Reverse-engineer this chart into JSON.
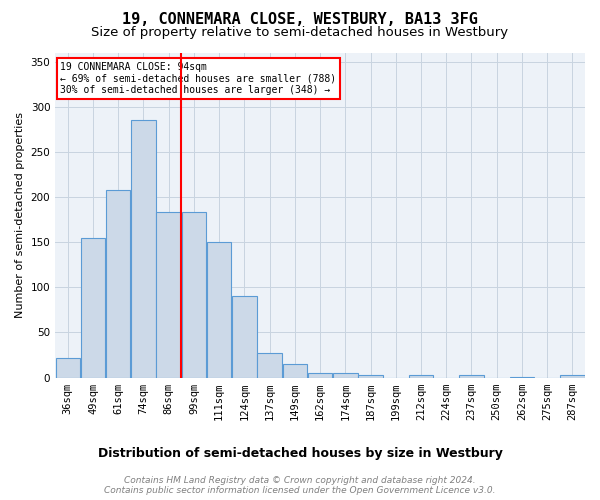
{
  "title": "19, CONNEMARA CLOSE, WESTBURY, BA13 3FG",
  "subtitle": "Size of property relative to semi-detached houses in Westbury",
  "xlabel": "Distribution of semi-detached houses by size in Westbury",
  "ylabel": "Number of semi-detached properties",
  "bar_labels": [
    "36sqm",
    "49sqm",
    "61sqm",
    "74sqm",
    "86sqm",
    "99sqm",
    "111sqm",
    "124sqm",
    "137sqm",
    "149sqm",
    "162sqm",
    "174sqm",
    "187sqm",
    "199sqm",
    "212sqm",
    "224sqm",
    "237sqm",
    "250sqm",
    "262sqm",
    "275sqm",
    "287sqm"
  ],
  "bar_values": [
    22,
    155,
    208,
    285,
    183,
    183,
    150,
    90,
    27,
    15,
    5,
    5,
    3,
    0,
    3,
    0,
    3,
    0,
    1,
    0,
    3
  ],
  "bar_color": "#ccd9e8",
  "bar_edge_color": "#5b9bd5",
  "vline_x": 4.5,
  "vline_color": "red",
  "annotation_text": "19 CONNEMARA CLOSE: 94sqm\n← 69% of semi-detached houses are smaller (788)\n30% of semi-detached houses are larger (348) →",
  "annotation_box_color": "white",
  "annotation_box_edge_color": "red",
  "ylim": [
    0,
    360
  ],
  "yticks": [
    0,
    50,
    100,
    150,
    200,
    250,
    300,
    350
  ],
  "footer_line1": "Contains HM Land Registry data © Crown copyright and database right 2024.",
  "footer_line2": "Contains public sector information licensed under the Open Government Licence v3.0.",
  "title_fontsize": 11,
  "subtitle_fontsize": 9.5,
  "xlabel_fontsize": 9,
  "ylabel_fontsize": 8,
  "tick_fontsize": 7.5,
  "annotation_fontsize": 7,
  "footer_fontsize": 6.5,
  "bg_color": "white",
  "plot_bg_color": "#edf2f8",
  "grid_color": "#c8d4e0"
}
